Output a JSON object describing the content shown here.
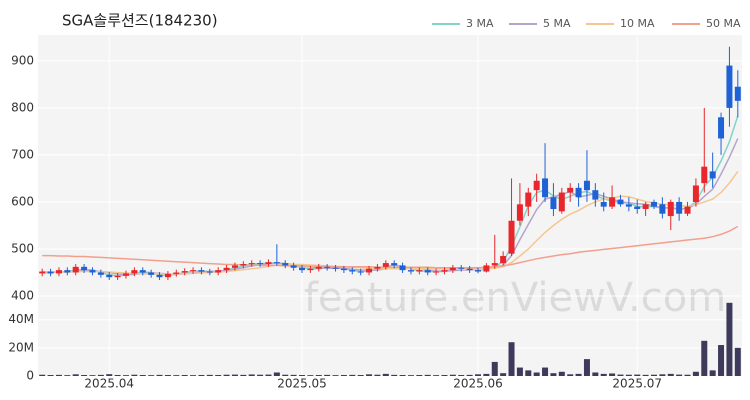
{
  "chart_data": {
    "type": "candlestick",
    "title": "SGA솔루션즈(184230)",
    "watermark": "feature.enViewV.com",
    "categories": [
      null,
      null,
      null,
      null,
      null,
      null,
      null,
      null,
      "2025.04",
      null,
      null,
      null,
      null,
      null,
      null,
      null,
      null,
      null,
      null,
      null,
      null,
      null,
      null,
      null,
      null,
      null,
      null,
      null,
      null,
      null,
      null,
      "2025.05",
      null,
      null,
      null,
      null,
      null,
      null,
      null,
      null,
      null,
      null,
      null,
      null,
      null,
      null,
      null,
      null,
      null,
      null,
      null,
      null,
      "2025.06",
      null,
      null,
      null,
      null,
      null,
      null,
      null,
      null,
      null,
      null,
      null,
      null,
      null,
      null,
      null,
      null,
      null,
      null,
      "2025.07",
      null,
      null,
      null,
      null,
      null,
      null,
      null,
      null,
      null,
      null,
      null,
      null
    ],
    "open": [
      448,
      452,
      448,
      455,
      450,
      462,
      455,
      450,
      445,
      440,
      443,
      448,
      455,
      450,
      445,
      440,
      447,
      450,
      453,
      455,
      452,
      450,
      455,
      460,
      465,
      468,
      470,
      468,
      472,
      470,
      465,
      460,
      455,
      458,
      462,
      460,
      458,
      455,
      452,
      450,
      458,
      462,
      470,
      465,
      455,
      452,
      455,
      450,
      452,
      455,
      460,
      458,
      455,
      452,
      465,
      470,
      490,
      560,
      590,
      625,
      650,
      610,
      580,
      620,
      630,
      645,
      625,
      600,
      590,
      605,
      595,
      590,
      585,
      600,
      595,
      570,
      600,
      575,
      600,
      640,
      665,
      780,
      890,
      845
    ],
    "high": [
      458,
      458,
      461,
      461,
      468,
      468,
      461,
      456,
      451,
      449,
      454,
      461,
      461,
      456,
      451,
      453,
      456,
      459,
      461,
      461,
      458,
      461,
      466,
      471,
      474,
      476,
      476,
      478,
      510,
      476,
      471,
      466,
      464,
      468,
      468,
      466,
      464,
      461,
      458,
      464,
      468,
      476,
      476,
      471,
      461,
      461,
      461,
      458,
      461,
      466,
      466,
      464,
      460,
      470,
      530,
      495,
      650,
      640,
      630,
      660,
      725,
      640,
      630,
      640,
      640,
      710,
      640,
      620,
      635,
      615,
      610,
      605,
      600,
      605,
      610,
      605,
      610,
      600,
      650,
      800,
      705,
      790,
      930,
      880
    ],
    "low": [
      442,
      442,
      442,
      444,
      444,
      449,
      444,
      439,
      434,
      434,
      437,
      442,
      444,
      439,
      434,
      434,
      441,
      444,
      447,
      446,
      444,
      444,
      449,
      454,
      459,
      462,
      462,
      462,
      464,
      459,
      454,
      449,
      449,
      452,
      454,
      452,
      449,
      446,
      444,
      444,
      452,
      456,
      459,
      449,
      446,
      446,
      444,
      444,
      446,
      449,
      452,
      449,
      448,
      450,
      458,
      465,
      485,
      550,
      570,
      600,
      600,
      570,
      575,
      600,
      590,
      600,
      590,
      580,
      585,
      590,
      580,
      575,
      570,
      585,
      565,
      540,
      560,
      570,
      590,
      620,
      630,
      700,
      760,
      780
    ],
    "close": [
      452,
      448,
      455,
      450,
      462,
      455,
      450,
      445,
      440,
      443,
      448,
      455,
      450,
      445,
      440,
      447,
      450,
      453,
      455,
      452,
      450,
      455,
      460,
      465,
      468,
      470,
      468,
      472,
      470,
      465,
      460,
      455,
      458,
      462,
      460,
      458,
      455,
      452,
      450,
      458,
      462,
      470,
      465,
      455,
      452,
      455,
      450,
      452,
      455,
      460,
      458,
      455,
      452,
      465,
      470,
      485,
      560,
      595,
      620,
      645,
      610,
      585,
      620,
      630,
      610,
      625,
      605,
      590,
      610,
      595,
      590,
      585,
      595,
      590,
      575,
      600,
      575,
      590,
      635,
      675,
      650,
      735,
      800,
      815
    ],
    "up_color": "#e8262b",
    "down_color": "#1f62d6",
    "ylim": [
      400,
      955
    ],
    "yticks": [
      400,
      500,
      600,
      700,
      800,
      900
    ],
    "ma": [
      {
        "name": "3 MA",
        "color": "#80d4c8",
        "values": [
          450,
          450,
          452,
          451,
          456,
          456,
          456,
          450,
          445,
          443,
          444,
          449,
          451,
          450,
          445,
          444,
          446,
          450,
          453,
          453,
          452,
          452,
          455,
          460,
          464,
          468,
          469,
          470,
          470,
          469,
          465,
          460,
          458,
          458,
          460,
          460,
          458,
          455,
          452,
          453,
          457,
          463,
          466,
          463,
          457,
          454,
          452,
          452,
          452,
          456,
          458,
          458,
          455,
          457,
          462,
          473,
          505,
          547,
          592,
          620,
          625,
          613,
          605,
          612,
          620,
          622,
          613,
          607,
          602,
          598,
          598,
          590,
          590,
          590,
          587,
          588,
          583,
          588,
          600,
          633,
          653,
          687,
          728,
          783
        ]
      },
      {
        "name": "5 MA",
        "color": "#b4a4cc",
        "values": [
          450,
          450,
          451,
          451,
          453,
          454,
          454,
          452,
          450,
          447,
          445,
          446,
          448,
          449,
          448,
          447,
          446,
          447,
          449,
          451,
          452,
          453,
          454,
          457,
          460,
          464,
          466,
          469,
          470,
          469,
          467,
          464,
          462,
          460,
          459,
          459,
          459,
          457,
          455,
          455,
          455,
          458,
          461,
          462,
          460,
          459,
          455,
          453,
          453,
          454,
          455,
          456,
          456,
          458,
          460,
          465,
          486,
          520,
          552,
          584,
          606,
          611,
          616,
          622,
          610,
          614,
          618,
          612,
          606,
          600,
          598,
          596,
          595,
          592,
          587,
          588,
          585,
          586,
          595,
          612,
          627,
          659,
          695,
          735
        ]
      },
      {
        "name": "10 MA",
        "color": "#f6c690",
        "values": [
          452,
          451,
          451,
          451,
          452,
          452,
          452,
          452,
          451,
          450,
          449,
          448,
          447,
          447,
          447,
          447,
          447,
          447,
          448,
          449,
          450,
          451,
          452,
          454,
          456,
          458,
          460,
          463,
          466,
          467,
          467,
          467,
          466,
          465,
          464,
          463,
          462,
          461,
          460,
          459,
          458,
          458,
          458,
          458,
          458,
          458,
          458,
          458,
          457,
          457,
          457,
          457,
          457,
          458,
          459,
          462,
          471,
          485,
          500,
          518,
          535,
          550,
          563,
          574,
          582,
          592,
          600,
          606,
          608,
          612,
          611,
          606,
          601,
          598,
          595,
          594,
          592,
          591,
          594,
          600,
          606,
          620,
          640,
          665
        ]
      },
      {
        "name": "50 MA",
        "color": "#f2a08c",
        "values": [
          486,
          486,
          485,
          485,
          484,
          484,
          483,
          482,
          481,
          480,
          479,
          478,
          477,
          476,
          475,
          474,
          473,
          472,
          471,
          470,
          469,
          468,
          467,
          467,
          466,
          466,
          465,
          465,
          465,
          464,
          464,
          464,
          463,
          463,
          463,
          462,
          462,
          462,
          462,
          462,
          461,
          461,
          461,
          461,
          461,
          461,
          461,
          460,
          460,
          460,
          460,
          460,
          460,
          461,
          462,
          464,
          467,
          471,
          475,
          479,
          482,
          485,
          488,
          490,
          493,
          495,
          497,
          499,
          501,
          503,
          505,
          507,
          509,
          511,
          513,
          515,
          517,
          519,
          521,
          523,
          526,
          531,
          538,
          548
        ]
      }
    ],
    "volume": {
      "color": "#3d3a5c",
      "ylim": [
        0,
        54000000
      ],
      "yticks": [
        0,
        {
          "value": 20000000,
          "label": "20M"
        },
        {
          "value": 40000000,
          "label": "40M"
        }
      ],
      "values": [
        900000,
        700000,
        800000,
        600000,
        1200000,
        700000,
        600000,
        800000,
        1300000,
        700000,
        600000,
        900000,
        700000,
        600000,
        800000,
        700000,
        600000,
        700000,
        600000,
        700000,
        800000,
        700000,
        900000,
        1000000,
        800000,
        1100000,
        900000,
        1000000,
        2500000,
        900000,
        800000,
        700000,
        600000,
        700000,
        800000,
        600000,
        700000,
        800000,
        700000,
        1200000,
        900000,
        1500000,
        800000,
        700000,
        600000,
        700000,
        800000,
        600000,
        700000,
        900000,
        700000,
        800000,
        1200000,
        1500000,
        10000000,
        2000000,
        24000000,
        6000000,
        4000000,
        2500000,
        6000000,
        2000000,
        3000000,
        1200000,
        1500000,
        12000000,
        2500000,
        1500000,
        1800000,
        1000000,
        900000,
        1000000,
        800000,
        900000,
        1200000,
        1500000,
        1000000,
        900000,
        3000000,
        25000000,
        4000000,
        22000000,
        52000000,
        20000000
      ]
    }
  }
}
